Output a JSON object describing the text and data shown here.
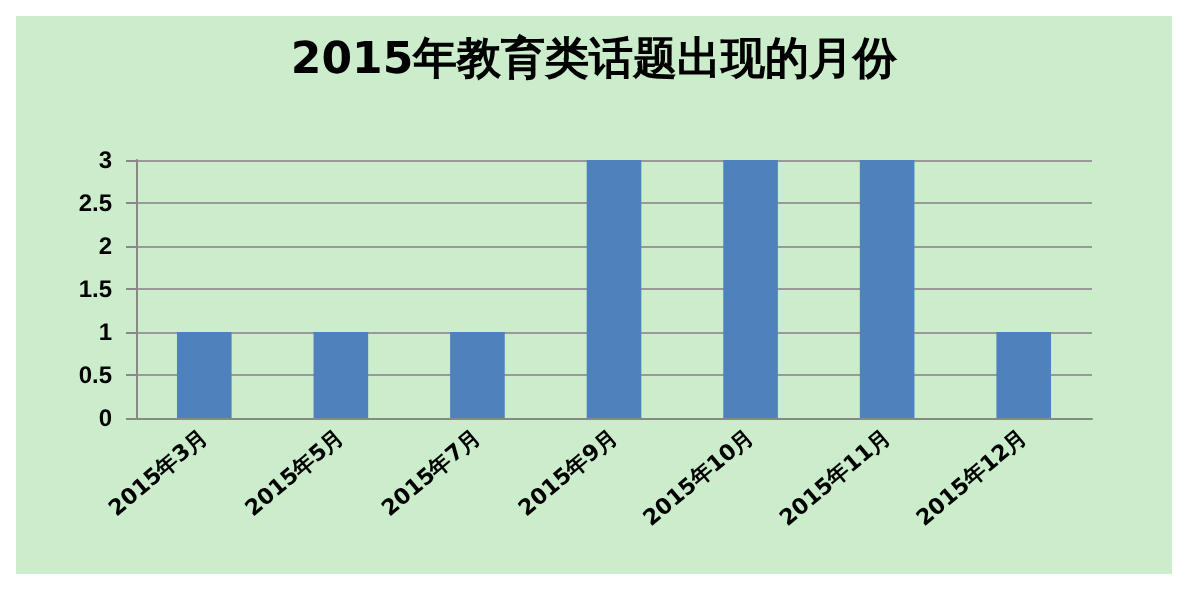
{
  "chart_data": {
    "type": "bar",
    "title": "2015年教育类话题出现的月份",
    "categories": [
      "2015年3月",
      "2015年5月",
      "2015年7月",
      "2015年9月",
      "2015年10月",
      "2015年11月",
      "2015年12月"
    ],
    "values": [
      1,
      1,
      1,
      3,
      3,
      3,
      1
    ],
    "color": "#4f81bd",
    "ylim": [
      0,
      3
    ],
    "yticks": [
      0,
      0.5,
      1,
      1.5,
      2,
      2.5,
      3
    ],
    "grid": "y"
  }
}
